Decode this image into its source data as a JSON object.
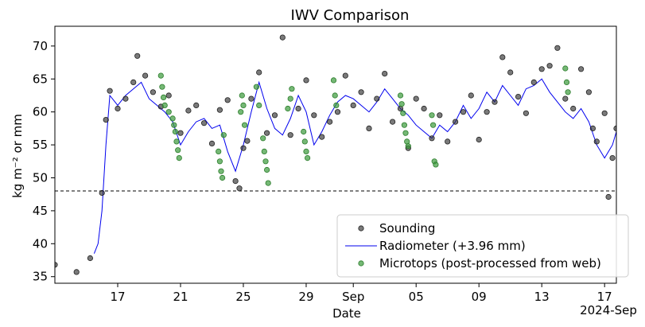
{
  "chart_data": {
    "type": "scatter",
    "title": "IWV Comparison",
    "xlabel": "Date",
    "ylabel": "kg m⁻² or mm",
    "x_offset_label": "2024-Sep",
    "xlim": [
      "2024-08-13T00:00",
      "2024-09-17T18:00"
    ],
    "ylim": [
      34,
      73
    ],
    "x_tick_labels": [
      {
        "date": "2024-08-17",
        "label": "17"
      },
      {
        "date": "2024-08-21",
        "label": "21"
      },
      {
        "date": "2024-08-25",
        "label": "25"
      },
      {
        "date": "2024-08-29",
        "label": "29"
      },
      {
        "date": "2024-09-01",
        "label": "Sep"
      },
      {
        "date": "2024-09-05",
        "label": "05"
      },
      {
        "date": "2024-09-09",
        "label": "09"
      },
      {
        "date": "2024-09-13",
        "label": "13"
      },
      {
        "date": "2024-09-17",
        "label": "17"
      }
    ],
    "y_ticks": [
      35,
      40,
      45,
      50,
      55,
      60,
      65,
      70
    ],
    "reference_line": {
      "y": 48,
      "style": "dashed",
      "color": "#000000"
    },
    "legend_position": "lower-right",
    "series": [
      {
        "name": "Sounding",
        "marker": "circle",
        "color": "#333333",
        "opacity": 0.65,
        "points": [
          [
            "2024-08-13T00:00",
            36.8
          ],
          [
            "2024-08-14T09:00",
            35.7
          ],
          [
            "2024-08-15T06:00",
            37.8
          ],
          [
            "2024-08-16T00:00",
            47.7
          ],
          [
            "2024-08-16T06:00",
            58.8
          ],
          [
            "2024-08-16T12:00",
            63.2
          ],
          [
            "2024-08-17T00:00",
            60.5
          ],
          [
            "2024-08-17T12:00",
            62.0
          ],
          [
            "2024-08-18T00:00",
            64.5
          ],
          [
            "2024-08-18T06:00",
            68.5
          ],
          [
            "2024-08-18T18:00",
            65.5
          ],
          [
            "2024-08-19T06:00",
            63.0
          ],
          [
            "2024-08-19T18:00",
            60.8
          ],
          [
            "2024-08-20T06:00",
            62.5
          ],
          [
            "2024-08-21T00:00",
            56.8
          ],
          [
            "2024-08-21T12:00",
            60.2
          ],
          [
            "2024-08-22T00:00",
            61.0
          ],
          [
            "2024-08-22T12:00",
            58.3
          ],
          [
            "2024-08-23T00:00",
            55.2
          ],
          [
            "2024-08-23T12:00",
            60.3
          ],
          [
            "2024-08-24T00:00",
            61.8
          ],
          [
            "2024-08-24T12:00",
            49.5
          ],
          [
            "2024-08-24T18:00",
            48.4
          ],
          [
            "2024-08-25T00:00",
            54.5
          ],
          [
            "2024-08-25T06:00",
            55.6
          ],
          [
            "2024-08-25T12:00",
            62.0
          ],
          [
            "2024-08-26T00:00",
            66.0
          ],
          [
            "2024-08-26T12:00",
            56.8
          ],
          [
            "2024-08-27T00:00",
            59.5
          ],
          [
            "2024-08-27T12:00",
            71.3
          ],
          [
            "2024-08-28T00:00",
            56.5
          ],
          [
            "2024-08-28T12:00",
            60.5
          ],
          [
            "2024-08-29T00:00",
            64.8
          ],
          [
            "2024-08-29T12:00",
            59.5
          ],
          [
            "2024-08-30T00:00",
            56.2
          ],
          [
            "2024-08-30T12:00",
            58.5
          ],
          [
            "2024-08-31T00:00",
            60.0
          ],
          [
            "2024-08-31T12:00",
            65.5
          ],
          [
            "2024-09-01T00:00",
            61.0
          ],
          [
            "2024-09-01T12:00",
            63.0
          ],
          [
            "2024-09-02T00:00",
            57.5
          ],
          [
            "2024-09-02T12:00",
            62.0
          ],
          [
            "2024-09-03T00:00",
            65.8
          ],
          [
            "2024-09-03T12:00",
            58.5
          ],
          [
            "2024-09-04T00:00",
            60.5
          ],
          [
            "2024-09-04T12:00",
            54.5
          ],
          [
            "2024-09-05T00:00",
            62.0
          ],
          [
            "2024-09-05T12:00",
            60.5
          ],
          [
            "2024-09-06T00:00",
            56.0
          ],
          [
            "2024-09-06T12:00",
            59.5
          ],
          [
            "2024-09-07T00:00",
            55.5
          ],
          [
            "2024-09-07T12:00",
            58.5
          ],
          [
            "2024-09-08T00:00",
            60.0
          ],
          [
            "2024-09-08T12:00",
            62.5
          ],
          [
            "2024-09-09T00:00",
            55.8
          ],
          [
            "2024-09-09T12:00",
            60.0
          ],
          [
            "2024-09-10T00:00",
            61.5
          ],
          [
            "2024-09-10T12:00",
            68.3
          ],
          [
            "2024-09-11T00:00",
            66.0
          ],
          [
            "2024-09-11T12:00",
            62.3
          ],
          [
            "2024-09-12T00:00",
            59.8
          ],
          [
            "2024-09-12T12:00",
            64.5
          ],
          [
            "2024-09-13T00:00",
            66.5
          ],
          [
            "2024-09-13T12:00",
            67.0
          ],
          [
            "2024-09-14T00:00",
            69.7
          ],
          [
            "2024-09-14T12:00",
            62.0
          ],
          [
            "2024-09-15T00:00",
            60.5
          ],
          [
            "2024-09-15T12:00",
            66.5
          ],
          [
            "2024-09-16T00:00",
            63.0
          ],
          [
            "2024-09-16T06:00",
            57.5
          ],
          [
            "2024-09-16T12:00",
            55.5
          ],
          [
            "2024-09-17T00:00",
            59.8
          ],
          [
            "2024-09-17T06:00",
            47.1
          ],
          [
            "2024-09-17T12:00",
            53.0
          ],
          [
            "2024-09-17T18:00",
            57.5
          ]
        ]
      },
      {
        "name": "Radiometer (+3.96 mm)",
        "marker": "line",
        "color": "#0000ee",
        "points": [
          [
            "2024-08-15T12:00",
            38.5
          ],
          [
            "2024-08-15T18:00",
            40.0
          ],
          [
            "2024-08-16T00:00",
            45.0
          ],
          [
            "2024-08-16T06:00",
            55.0
          ],
          [
            "2024-08-16T12:00",
            62.5
          ],
          [
            "2024-08-17T00:00",
            61.0
          ],
          [
            "2024-08-17T12:00",
            62.5
          ],
          [
            "2024-08-18T00:00",
            63.5
          ],
          [
            "2024-08-18T12:00",
            64.5
          ],
          [
            "2024-08-19T00:00",
            62.0
          ],
          [
            "2024-08-19T12:00",
            61.0
          ],
          [
            "2024-08-20T00:00",
            60.0
          ],
          [
            "2024-08-20T12:00",
            58.5
          ],
          [
            "2024-08-21T00:00",
            55.0
          ],
          [
            "2024-08-21T12:00",
            57.0
          ],
          [
            "2024-08-22T00:00",
            58.5
          ],
          [
            "2024-08-22T12:00",
            59.0
          ],
          [
            "2024-08-23T00:00",
            57.5
          ],
          [
            "2024-08-23T12:00",
            58.0
          ],
          [
            "2024-08-24T00:00",
            54.0
          ],
          [
            "2024-08-24T12:00",
            51.0
          ],
          [
            "2024-08-25T00:00",
            55.0
          ],
          [
            "2024-08-25T12:00",
            60.0
          ],
          [
            "2024-08-26T00:00",
            64.5
          ],
          [
            "2024-08-26T12:00",
            60.5
          ],
          [
            "2024-08-27T00:00",
            57.5
          ],
          [
            "2024-08-27T12:00",
            56.5
          ],
          [
            "2024-08-28T00:00",
            59.0
          ],
          [
            "2024-08-28T12:00",
            62.5
          ],
          [
            "2024-08-29T00:00",
            60.0
          ],
          [
            "2024-08-29T12:00",
            55.0
          ],
          [
            "2024-08-30T00:00",
            57.0
          ],
          [
            "2024-08-30T12:00",
            59.5
          ],
          [
            "2024-08-31T00:00",
            61.5
          ],
          [
            "2024-08-31T12:00",
            62.5
          ],
          [
            "2024-09-01T00:00",
            62.0
          ],
          [
            "2024-09-01T12:00",
            61.0
          ],
          [
            "2024-09-02T00:00",
            60.0
          ],
          [
            "2024-09-02T12:00",
            61.5
          ],
          [
            "2024-09-03T00:00",
            63.5
          ],
          [
            "2024-09-03T12:00",
            62.0
          ],
          [
            "2024-09-04T00:00",
            60.5
          ],
          [
            "2024-09-04T12:00",
            59.5
          ],
          [
            "2024-09-05T00:00",
            58.0
          ],
          [
            "2024-09-05T12:00",
            57.0
          ],
          [
            "2024-09-06T00:00",
            56.0
          ],
          [
            "2024-09-06T12:00",
            58.0
          ],
          [
            "2024-09-07T00:00",
            57.0
          ],
          [
            "2024-09-07T12:00",
            58.5
          ],
          [
            "2024-09-08T00:00",
            61.0
          ],
          [
            "2024-09-08T12:00",
            59.0
          ],
          [
            "2024-09-09T00:00",
            60.5
          ],
          [
            "2024-09-09T12:00",
            63.0
          ],
          [
            "2024-09-10T00:00",
            61.5
          ],
          [
            "2024-09-10T12:00",
            64.0
          ],
          [
            "2024-09-11T00:00",
            62.5
          ],
          [
            "2024-09-11T12:00",
            61.0
          ],
          [
            "2024-09-12T00:00",
            63.5
          ],
          [
            "2024-09-12T12:00",
            64.0
          ],
          [
            "2024-09-13T00:00",
            65.0
          ],
          [
            "2024-09-13T12:00",
            63.0
          ],
          [
            "2024-09-14T00:00",
            61.5
          ],
          [
            "2024-09-14T12:00",
            60.0
          ],
          [
            "2024-09-15T00:00",
            59.0
          ],
          [
            "2024-09-15T12:00",
            60.5
          ],
          [
            "2024-09-16T00:00",
            58.5
          ],
          [
            "2024-09-16T12:00",
            55.0
          ],
          [
            "2024-09-17T00:00",
            53.0
          ],
          [
            "2024-09-17T12:00",
            55.0
          ],
          [
            "2024-09-17T18:00",
            57.0
          ]
        ]
      },
      {
        "name": "Microtops (post-processed from web)",
        "marker": "circle",
        "color": "#3a9a3a",
        "opacity": 0.7,
        "points": [
          [
            "2024-08-19T18:00",
            65.5
          ],
          [
            "2024-08-19T20:00",
            63.8
          ],
          [
            "2024-08-19T22:00",
            62.2
          ],
          [
            "2024-08-20T00:00",
            61.0
          ],
          [
            "2024-08-20T06:00",
            60.0
          ],
          [
            "2024-08-20T12:00",
            59.0
          ],
          [
            "2024-08-20T14:00",
            58.0
          ],
          [
            "2024-08-20T16:00",
            57.0
          ],
          [
            "2024-08-20T18:00",
            55.5
          ],
          [
            "2024-08-20T20:00",
            54.2
          ],
          [
            "2024-08-20T22:00",
            53.0
          ],
          [
            "2024-08-23T10:00",
            54.0
          ],
          [
            "2024-08-23T12:00",
            52.5
          ],
          [
            "2024-08-23T14:00",
            51.0
          ],
          [
            "2024-08-23T16:00",
            50.0
          ],
          [
            "2024-08-23T18:00",
            56.5
          ],
          [
            "2024-08-24T20:00",
            60.0
          ],
          [
            "2024-08-24T22:00",
            62.5
          ],
          [
            "2024-08-25T00:00",
            61.0
          ],
          [
            "2024-08-25T02:00",
            58.0
          ],
          [
            "2024-08-25T20:00",
            63.8
          ],
          [
            "2024-08-26T00:00",
            61.0
          ],
          [
            "2024-08-26T06:00",
            56.0
          ],
          [
            "2024-08-26T08:00",
            54.0
          ],
          [
            "2024-08-26T10:00",
            52.5
          ],
          [
            "2024-08-26T12:00",
            51.2
          ],
          [
            "2024-08-26T14:00",
            49.2
          ],
          [
            "2024-08-27T20:00",
            60.5
          ],
          [
            "2024-08-28T00:00",
            62.0
          ],
          [
            "2024-08-28T02:00",
            63.5
          ],
          [
            "2024-08-28T20:00",
            57.0
          ],
          [
            "2024-08-28T22:00",
            55.5
          ],
          [
            "2024-08-29T00:00",
            54.0
          ],
          [
            "2024-08-29T02:00",
            53.0
          ],
          [
            "2024-08-30T18:00",
            64.8
          ],
          [
            "2024-08-30T20:00",
            62.5
          ],
          [
            "2024-08-30T22:00",
            61.0
          ],
          [
            "2024-09-04T00:00",
            62.5
          ],
          [
            "2024-09-04T02:00",
            61.2
          ],
          [
            "2024-09-04T04:00",
            59.8
          ],
          [
            "2024-09-04T06:00",
            58.0
          ],
          [
            "2024-09-04T08:00",
            56.8
          ],
          [
            "2024-09-04T10:00",
            55.5
          ],
          [
            "2024-09-04T12:00",
            54.8
          ],
          [
            "2024-09-06T00:00",
            59.5
          ],
          [
            "2024-09-06T02:00",
            58.0
          ],
          [
            "2024-09-06T04:00",
            52.5
          ],
          [
            "2024-09-06T06:00",
            52.0
          ],
          [
            "2024-09-14T12:00",
            66.6
          ],
          [
            "2024-09-14T14:00",
            64.5
          ],
          [
            "2024-09-14T16:00",
            63.0
          ]
        ]
      }
    ]
  }
}
